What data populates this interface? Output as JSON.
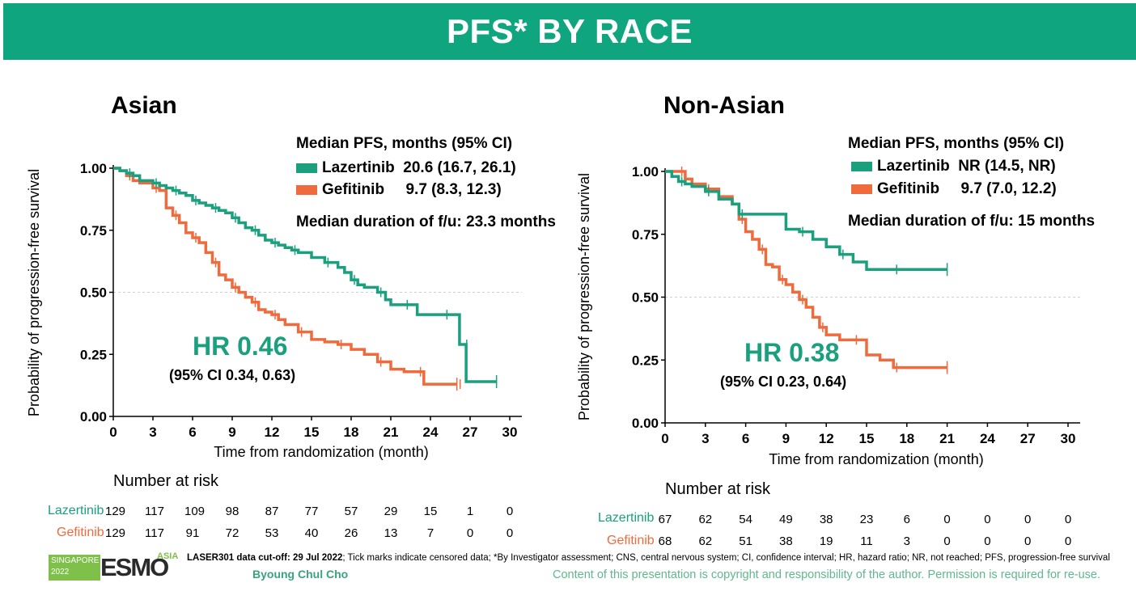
{
  "header": {
    "title": "PFS* BY RACE"
  },
  "colors": {
    "header_bg": "#0fa57f",
    "lazertinib": "#1aa07e",
    "gefitinib": "#ef6a3d"
  },
  "chart_data": [
    {
      "type": "line",
      "title": "Asian",
      "xlabel": "Time from randomization (month)",
      "ylabel": "Probability of progression-free survival",
      "xlim": [
        0,
        30
      ],
      "ylim": [
        0,
        1
      ],
      "x_ticks": [
        "0",
        "3",
        "6",
        "9",
        "12",
        "15",
        "18",
        "21",
        "24",
        "27",
        "30"
      ],
      "y_ticks": [
        "0.00",
        "0.25",
        "0.50",
        "0.75",
        "1.00"
      ],
      "reference_line_y": 0.5,
      "legend_title": "Median PFS, months (95% CI)",
      "legend": [
        {
          "name": "Lazertinib",
          "value": "20.6 (16.7, 26.1)"
        },
        {
          "name": "Gefitinib",
          "value": "9.7 (8.3, 12.3)"
        }
      ],
      "followup": "Median duration of f/u: 23.3 months",
      "hr": "HR 0.46",
      "hr_ci": "(95% CI 0.34, 0.63)",
      "series": [
        {
          "name": "Lazertinib",
          "x": [
            0,
            0.5,
            1,
            1.5,
            2,
            3,
            3.5,
            4,
            4.5,
            5,
            5.5,
            6,
            6.5,
            7,
            7.5,
            8,
            8.5,
            9,
            9.5,
            10,
            10.5,
            11,
            11.5,
            12,
            12.5,
            13,
            13.5,
            14,
            15,
            16,
            17,
            17.5,
            18,
            18.5,
            19,
            20,
            20.6,
            21,
            22,
            23,
            24,
            25,
            26,
            26.2,
            26.5,
            26.7,
            29
          ],
          "y": [
            1,
            0.99,
            0.98,
            0.97,
            0.95,
            0.94,
            0.93,
            0.92,
            0.91,
            0.9,
            0.89,
            0.87,
            0.86,
            0.85,
            0.84,
            0.83,
            0.82,
            0.8,
            0.78,
            0.76,
            0.75,
            0.73,
            0.71,
            0.7,
            0.69,
            0.68,
            0.67,
            0.66,
            0.64,
            0.62,
            0.6,
            0.58,
            0.55,
            0.53,
            0.52,
            0.5,
            0.47,
            0.45,
            0.45,
            0.41,
            0.41,
            0.41,
            0.41,
            0.29,
            0.29,
            0.14,
            0.14
          ]
        },
        {
          "name": "Gefitinib",
          "x": [
            0,
            0.5,
            1,
            1.5,
            2,
            3,
            3.5,
            4,
            4.5,
            5,
            5.5,
            6,
            6.5,
            7,
            7.5,
            8,
            8.5,
            9,
            9.5,
            10,
            10.5,
            11,
            11.5,
            12,
            12.5,
            13,
            14,
            15,
            16,
            17,
            18,
            19,
            20,
            21,
            22,
            23,
            23.5,
            24,
            26
          ],
          "y": [
            1,
            0.99,
            0.97,
            0.95,
            0.94,
            0.92,
            0.91,
            0.84,
            0.81,
            0.78,
            0.74,
            0.72,
            0.7,
            0.66,
            0.62,
            0.57,
            0.55,
            0.52,
            0.5,
            0.48,
            0.46,
            0.43,
            0.42,
            0.41,
            0.39,
            0.37,
            0.34,
            0.31,
            0.3,
            0.29,
            0.27,
            0.25,
            0.22,
            0.19,
            0.18,
            0.18,
            0.13,
            0.13,
            0.13
          ]
        }
      ],
      "number_at_risk": {
        "title": "Number at risk",
        "rows": [
          {
            "label": "Lazertinib",
            "values": [
              "129",
              "117",
              "109",
              "98",
              "87",
              "77",
              "57",
              "29",
              "15",
              "1",
              "0"
            ]
          },
          {
            "label": "Gefitinib",
            "values": [
              "129",
              "117",
              "91",
              "72",
              "53",
              "40",
              "26",
              "13",
              "7",
              "0",
              "0"
            ]
          }
        ]
      }
    },
    {
      "type": "line",
      "title": "Non-Asian",
      "xlabel": "Time from randomization (month)",
      "ylabel": "Probability of progression-free survival",
      "xlim": [
        0,
        30
      ],
      "ylim": [
        0,
        1
      ],
      "x_ticks": [
        "0",
        "3",
        "6",
        "9",
        "12",
        "15",
        "18",
        "21",
        "24",
        "27",
        "30"
      ],
      "y_ticks": [
        "0.00",
        "0.25",
        "0.50",
        "0.75",
        "1.00"
      ],
      "reference_line_y": 0.5,
      "legend_title": "Median PFS, months (95% CI)",
      "legend": [
        {
          "name": "Lazertinib",
          "value": "NR (14.5, NR)"
        },
        {
          "name": "Gefitinib",
          "value": "9.7 (7.0, 12.2)"
        }
      ],
      "followup": "Median duration of f/u: 15 months",
      "hr": "HR 0.38",
      "hr_ci": "(95% CI 0.23, 0.64)",
      "series": [
        {
          "name": "Lazertinib",
          "x": [
            0,
            0.5,
            1,
            1.5,
            2,
            3,
            4,
            5,
            5.5,
            8.5,
            9,
            10,
            11,
            12,
            13,
            14,
            15,
            17,
            21
          ],
          "y": [
            1,
            0.98,
            0.96,
            0.95,
            0.94,
            0.92,
            0.89,
            0.87,
            0.83,
            0.83,
            0.77,
            0.76,
            0.73,
            0.7,
            0.67,
            0.64,
            0.61,
            0.61,
            0.61
          ]
        },
        {
          "name": "Gefitinib",
          "x": [
            0,
            0.5,
            1,
            1.5,
            2,
            3,
            4,
            5,
            5.5,
            6,
            6.5,
            7,
            7.5,
            8,
            8.5,
            9,
            9.5,
            10,
            10.5,
            11,
            11.5,
            12,
            13,
            14,
            15,
            16,
            17,
            21
          ],
          "y": [
            1,
            1,
            1,
            0.97,
            0.95,
            0.93,
            0.9,
            0.87,
            0.81,
            0.76,
            0.73,
            0.69,
            0.63,
            0.62,
            0.57,
            0.55,
            0.52,
            0.49,
            0.46,
            0.42,
            0.38,
            0.35,
            0.33,
            0.33,
            0.27,
            0.25,
            0.22,
            0.22
          ]
        }
      ],
      "number_at_risk": {
        "title": "Number at risk",
        "rows": [
          {
            "label": "Lazertinib",
            "values": [
              "67",
              "62",
              "54",
              "49",
              "38",
              "23",
              "6",
              "0",
              "0",
              "0",
              "0"
            ]
          },
          {
            "label": "Gefitinib",
            "values": [
              "68",
              "62",
              "51",
              "38",
              "19",
              "11",
              "3",
              "0",
              "0",
              "0",
              "0"
            ]
          }
        ]
      }
    }
  ],
  "footer": {
    "logo_text": {
      "city": "SINGAPORE",
      "year": "2022",
      "brand": "ESMO",
      "region": "ASIA"
    },
    "note_bold": "LASER301 data cut-off: 29 Jul 2022",
    "note_rest": "; Tick marks indicate censored data; *By Investigator assessment; CNS, central nervous system; CI, confidence interval; HR, hazard ratio; NR, not reached; PFS, progression-free survival",
    "author": "Byoung Chul Cho",
    "copyright": "Content of this presentation is copyright and responsibility of the author. Permission is required for re-use."
  }
}
